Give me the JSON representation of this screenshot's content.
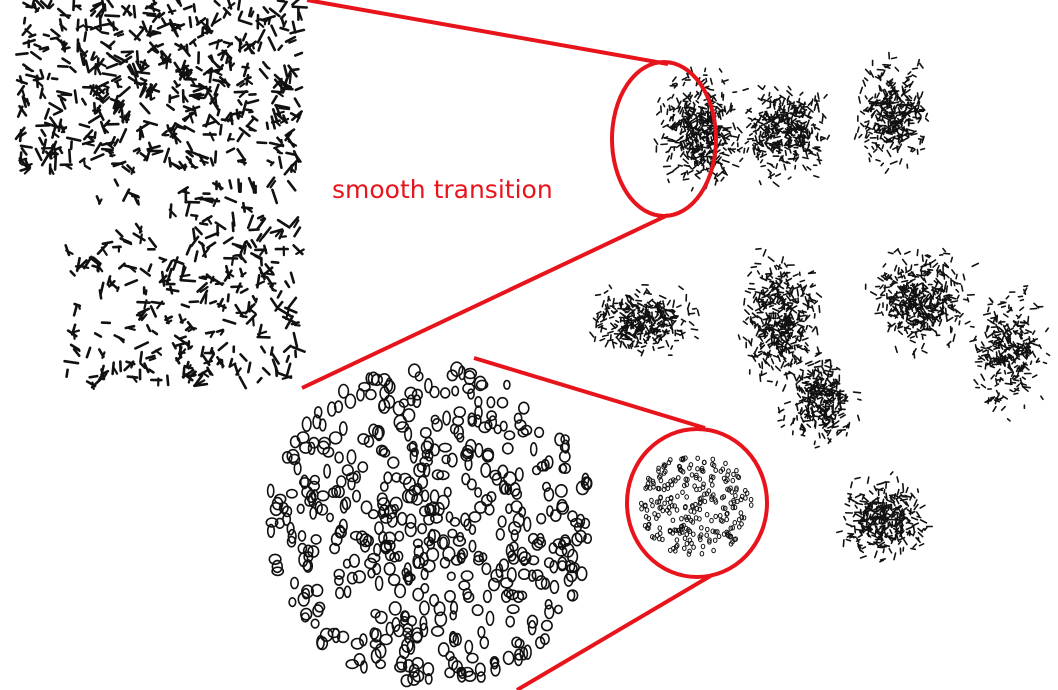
{
  "annotation": {
    "label": "smooth transition",
    "color": "#e8141c"
  },
  "colors": {
    "background": "#ffffff",
    "glyph": "#111111",
    "callout": "#e8141c"
  }
}
